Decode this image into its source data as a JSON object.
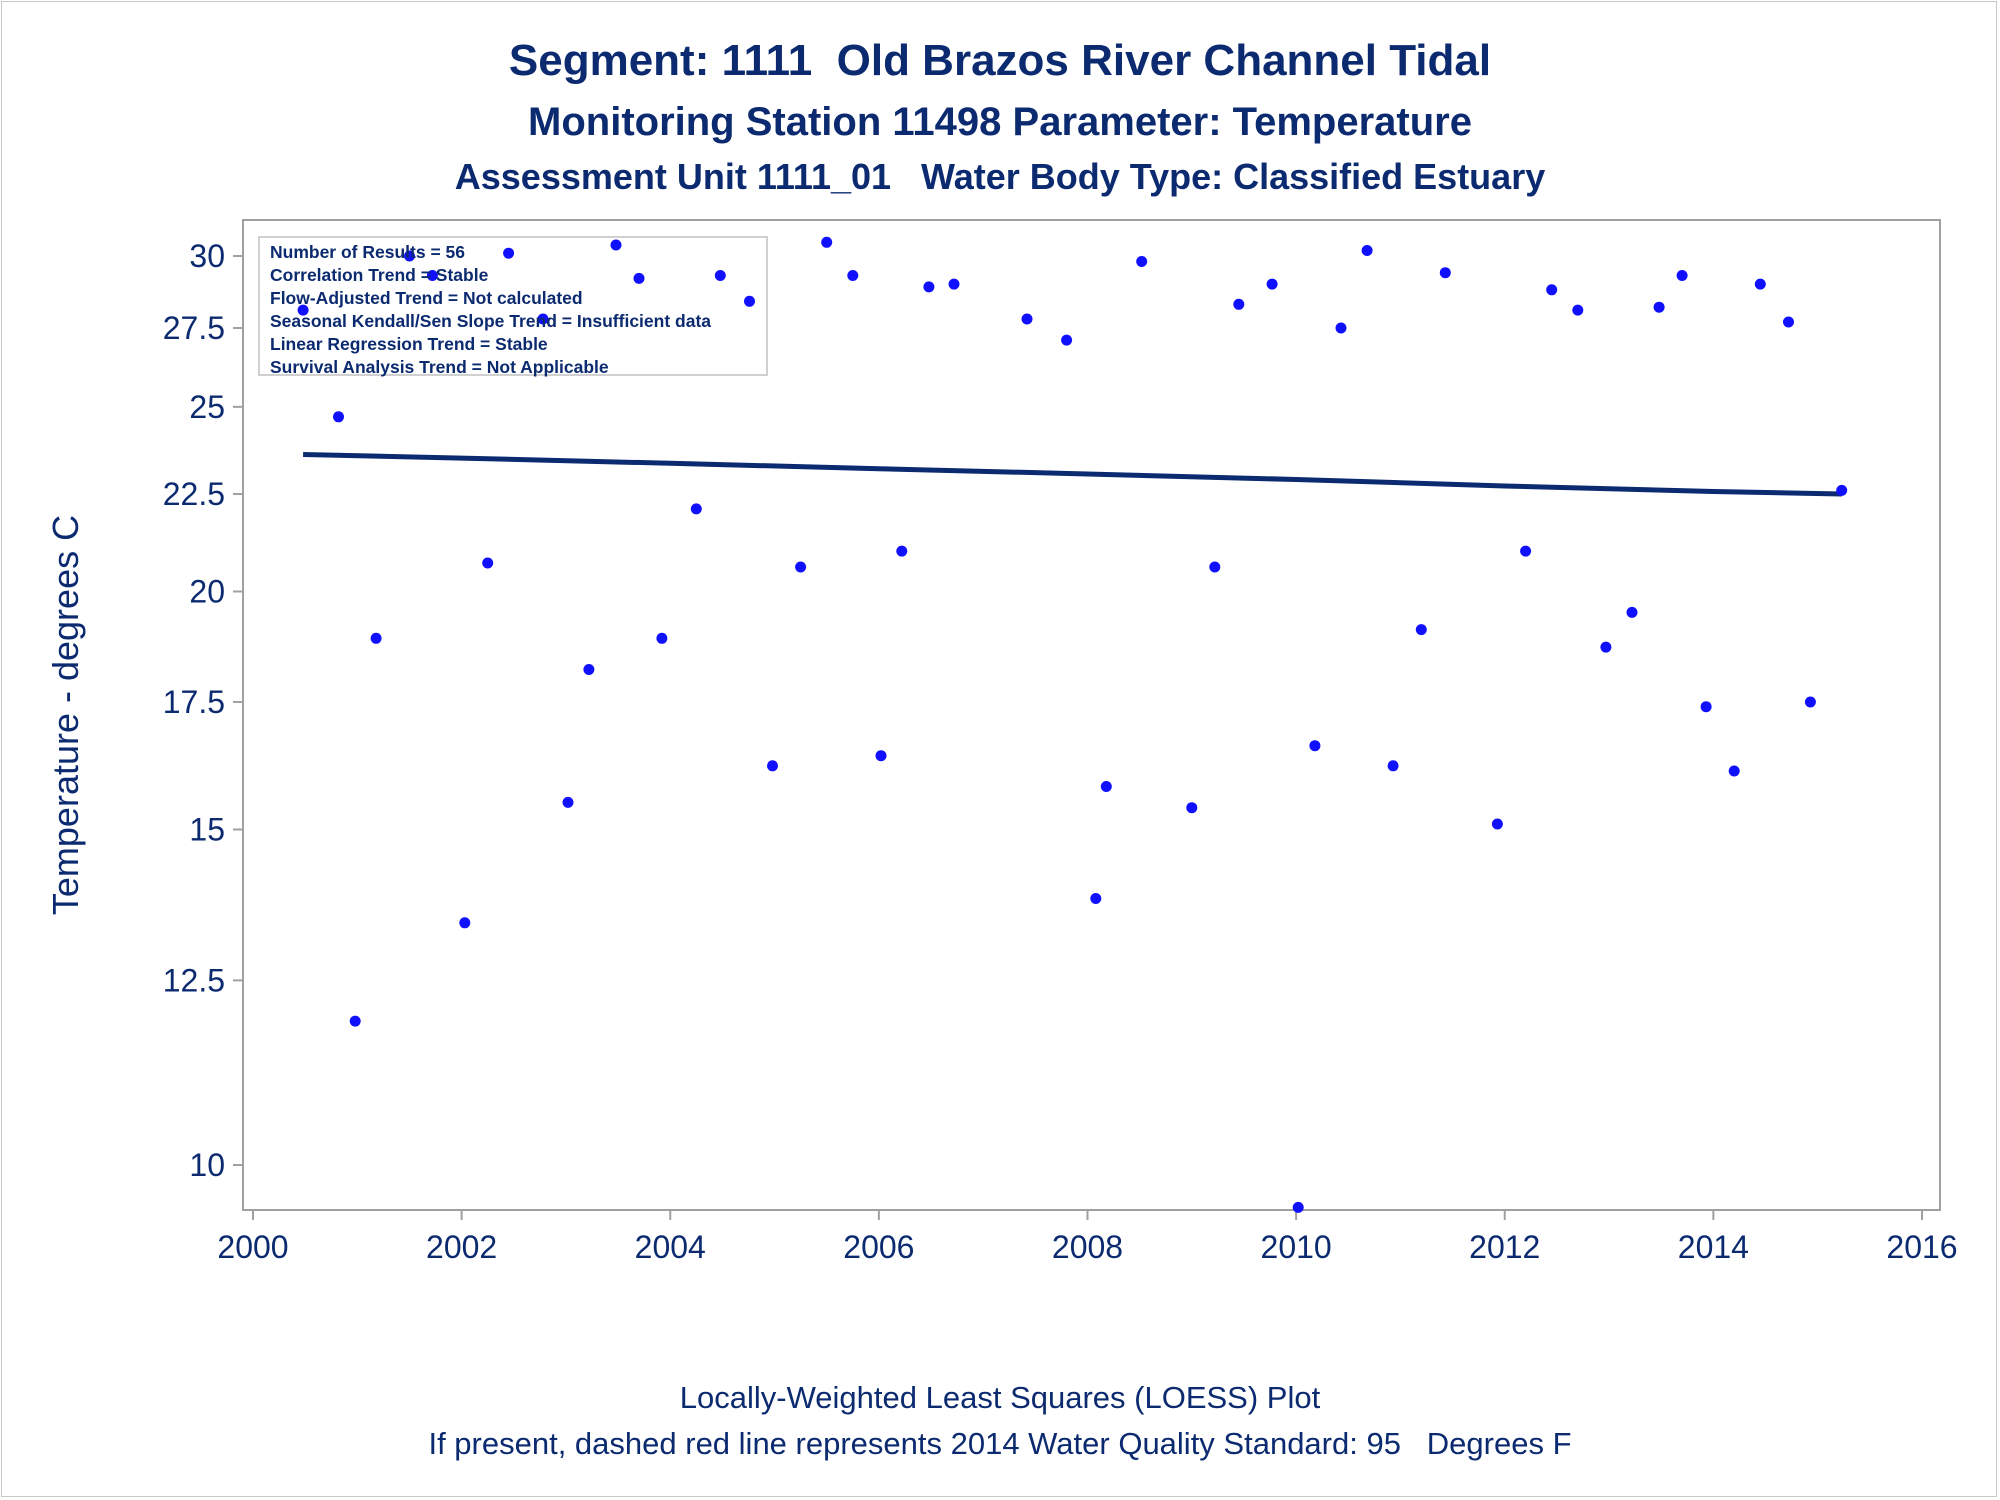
{
  "titles": {
    "line1": "Segment: 1111  Old Brazos River Channel Tidal",
    "line2": "Monitoring Station 11498 Parameter: Temperature",
    "line3": "Assessment Unit 1111_01   Water Body Type: Classified Estuary"
  },
  "footnotes": {
    "line1": "Locally-Weighted Least Squares (LOESS) Plot",
    "line2": "If present, dashed red line represents 2014 Water Quality Standard: 95   Degrees F"
  },
  "stats_box": [
    "Number of Results = 56",
    "Correlation Trend = Stable",
    "Flow-Adjusted Trend = Not calculated",
    "Seasonal Kendall/Sen Slope Trend = Insufficient data",
    "Linear Regression Trend = Stable",
    "Survival Analysis Trend = Not Applicable"
  ],
  "colors": {
    "text": "#0b2a6f",
    "points": "#1010ff",
    "trend_line": "#0b2a6f",
    "frame": "#a0a0a0"
  },
  "chart_data": {
    "type": "scatter",
    "xlabel": "",
    "ylabel": "Temperature - degrees C",
    "x_scale": "linear",
    "y_scale": "log",
    "xlim": [
      2000,
      2016
    ],
    "ylim": [
      9.7,
      31
    ],
    "x_ticks": [
      2000,
      2002,
      2004,
      2006,
      2008,
      2010,
      2012,
      2014,
      2016
    ],
    "y_ticks": [
      10,
      12.5,
      15,
      17.5,
      20,
      22.5,
      25,
      27.5,
      30
    ],
    "y_tick_labels": [
      "10",
      "12.5",
      "15",
      "17.5",
      "20",
      "22.5",
      "25",
      "27.5",
      "30"
    ],
    "series": [
      {
        "type": "scatter",
        "points": [
          [
            2000.48,
            28.1
          ],
          [
            2000.82,
            24.7
          ],
          [
            2000.98,
            11.9
          ],
          [
            2001.18,
            18.9
          ],
          [
            2001.5,
            30.0
          ],
          [
            2001.72,
            29.3
          ],
          [
            2002.03,
            13.4
          ],
          [
            2002.25,
            20.7
          ],
          [
            2002.45,
            30.1
          ],
          [
            2002.78,
            27.8
          ],
          [
            2003.02,
            15.5
          ],
          [
            2003.22,
            18.2
          ],
          [
            2003.48,
            30.4
          ],
          [
            2003.7,
            29.2
          ],
          [
            2003.92,
            18.9
          ],
          [
            2004.25,
            22.1
          ],
          [
            2004.48,
            29.3
          ],
          [
            2004.76,
            28.4
          ],
          [
            2004.98,
            16.2
          ],
          [
            2005.25,
            20.6
          ],
          [
            2005.5,
            30.5
          ],
          [
            2005.75,
            29.3
          ],
          [
            2006.02,
            16.4
          ],
          [
            2006.22,
            21.0
          ],
          [
            2006.48,
            28.9
          ],
          [
            2006.72,
            29.0
          ],
          [
            2007.42,
            27.8
          ],
          [
            2007.8,
            27.1
          ],
          [
            2008.08,
            13.8
          ],
          [
            2008.18,
            15.8
          ],
          [
            2008.52,
            29.8
          ],
          [
            2009.0,
            15.4
          ],
          [
            2009.22,
            20.6
          ],
          [
            2009.45,
            28.3
          ],
          [
            2009.77,
            29.0
          ],
          [
            2010.02,
            9.5
          ],
          [
            2010.18,
            16.6
          ],
          [
            2010.43,
            27.5
          ],
          [
            2010.68,
            30.2
          ],
          [
            2010.93,
            16.2
          ],
          [
            2011.2,
            19.1
          ],
          [
            2011.43,
            29.4
          ],
          [
            2011.93,
            15.1
          ],
          [
            2012.2,
            21.0
          ],
          [
            2012.45,
            28.8
          ],
          [
            2012.7,
            28.1
          ],
          [
            2012.97,
            18.7
          ],
          [
            2013.22,
            19.5
          ],
          [
            2013.48,
            28.2
          ],
          [
            2013.7,
            29.3
          ],
          [
            2013.93,
            17.4
          ],
          [
            2014.2,
            16.1
          ],
          [
            2014.45,
            29.0
          ],
          [
            2014.72,
            27.7
          ],
          [
            2014.93,
            17.5
          ],
          [
            2015.23,
            22.6
          ]
        ]
      },
      {
        "type": "line",
        "points": [
          [
            2000.48,
            23.6
          ],
          [
            2002.0,
            23.5
          ],
          [
            2004.0,
            23.35
          ],
          [
            2006.0,
            23.2
          ],
          [
            2008.0,
            23.05
          ],
          [
            2010.0,
            22.9
          ],
          [
            2012.0,
            22.72
          ],
          [
            2014.0,
            22.57
          ],
          [
            2015.23,
            22.5
          ]
        ]
      }
    ],
    "grid": false,
    "legend": "none"
  }
}
